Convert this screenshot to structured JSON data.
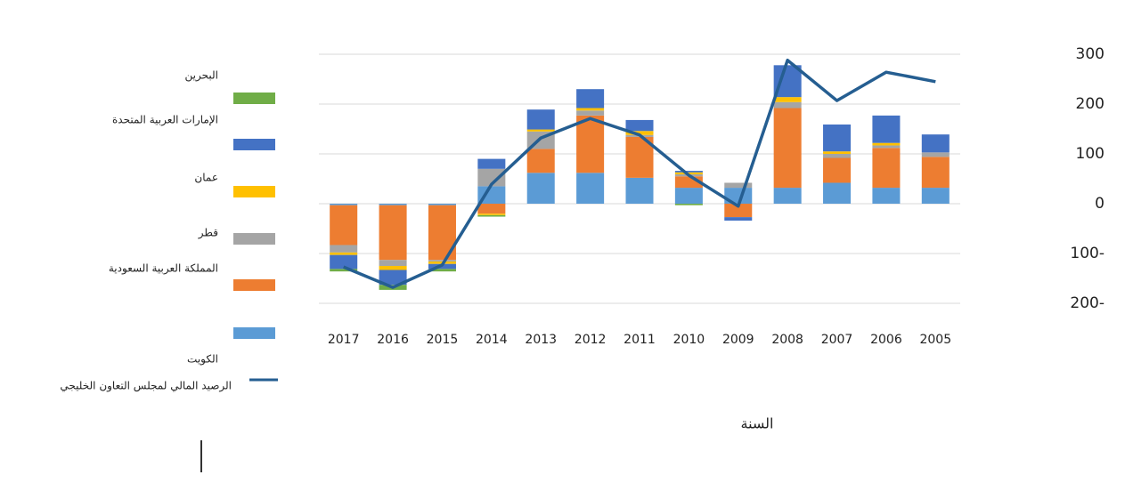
{
  "chart_data": {
    "type": "bar",
    "stacked": true,
    "x_label": "السنة",
    "categories": [
      "2017",
      "2016",
      "2015",
      "2014",
      "2013",
      "2012",
      "2011",
      "2010",
      "2009",
      "2008",
      "2007",
      "2006",
      "2005"
    ],
    "series": [
      {
        "name": "الكويت",
        "color": "#5b9bd5",
        "values": [
          -3,
          -3,
          -3,
          35,
          62,
          62,
          52,
          32,
          32,
          32,
          42,
          32,
          32
        ]
      },
      {
        "name": "المملكة العربية السعودية",
        "color": "#ed7d31",
        "values": [
          -80,
          -110,
          -110,
          -20,
          48,
          115,
          82,
          23,
          -27,
          160,
          50,
          80,
          62
        ]
      },
      {
        "name": "قطر",
        "color": "#a5a5a5",
        "values": [
          -15,
          -12,
          -3,
          35,
          35,
          10,
          4,
          4,
          10,
          12,
          8,
          5,
          9
        ]
      },
      {
        "name": "عمان",
        "color": "#ffc000",
        "values": [
          -5,
          -8,
          -5,
          -3,
          4,
          5,
          8,
          4,
          0,
          10,
          5,
          5,
          0
        ]
      },
      {
        "name": "الإمارات العربية المتحدة",
        "color": "#4472c4",
        "values": [
          -28,
          -30,
          -10,
          20,
          40,
          38,
          22,
          3,
          -7,
          64,
          54,
          55,
          36
        ]
      },
      {
        "name": "البحرين",
        "color": "#70ad47",
        "values": [
          -5,
          -10,
          -5,
          -3,
          0,
          0,
          0,
          -3,
          0,
          0,
          0,
          0,
          0
        ]
      }
    ],
    "line_series": {
      "name": "الرصيد المالي لمجلس التعاون الخليجي",
      "color": "#255e91",
      "values": [
        -127,
        -168,
        -123,
        39,
        132,
        171,
        138,
        57,
        -5,
        288,
        207,
        264,
        245
      ]
    },
    "ylim": [
      -200,
      300
    ],
    "yticks": [
      {
        "value": -200,
        "label": "200-"
      },
      {
        "value": -100,
        "label": "100-"
      },
      0,
      100,
      200,
      300
    ],
    "grid": true
  }
}
